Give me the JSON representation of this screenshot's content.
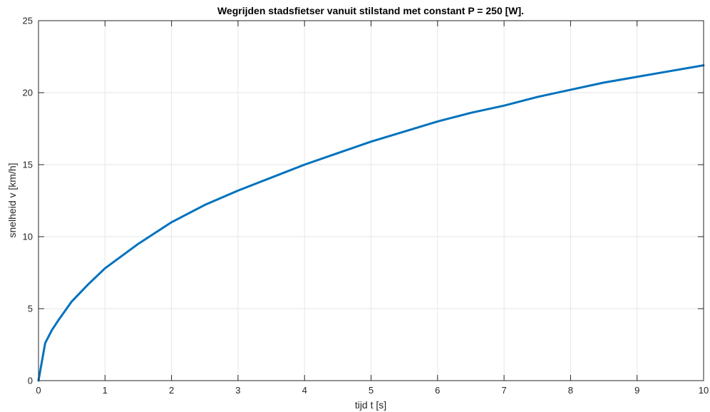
{
  "chart_data": {
    "type": "line",
    "title": "Wegrijden stadsfietser vanuit stilstand met constant P = 250 [W].",
    "xlabel": "tijd t [s]",
    "ylabel": "snelheid v [km/h]",
    "xlim": [
      0,
      10
    ],
    "ylim": [
      0,
      25
    ],
    "xticks": [
      0,
      1,
      2,
      3,
      4,
      5,
      6,
      7,
      8,
      9,
      10
    ],
    "yticks": [
      0,
      5,
      10,
      15,
      20,
      25
    ],
    "grid": true,
    "series": [
      {
        "color": "#0072BD",
        "x": [
          0,
          0.1,
          0.2,
          0.3,
          0.5,
          0.75,
          1,
          1.5,
          2,
          2.5,
          3,
          3.5,
          4,
          4.5,
          5,
          5.5,
          6,
          6.5,
          7,
          7.5,
          8,
          8.5,
          9,
          9.5,
          10
        ],
        "y": [
          0,
          2.6,
          3.5,
          4.2,
          5.5,
          6.7,
          7.8,
          9.5,
          11.0,
          12.2,
          13.2,
          14.1,
          15.0,
          15.8,
          16.6,
          17.3,
          18.0,
          18.6,
          19.1,
          19.7,
          20.2,
          20.7,
          21.1,
          21.5,
          21.9
        ]
      }
    ]
  }
}
